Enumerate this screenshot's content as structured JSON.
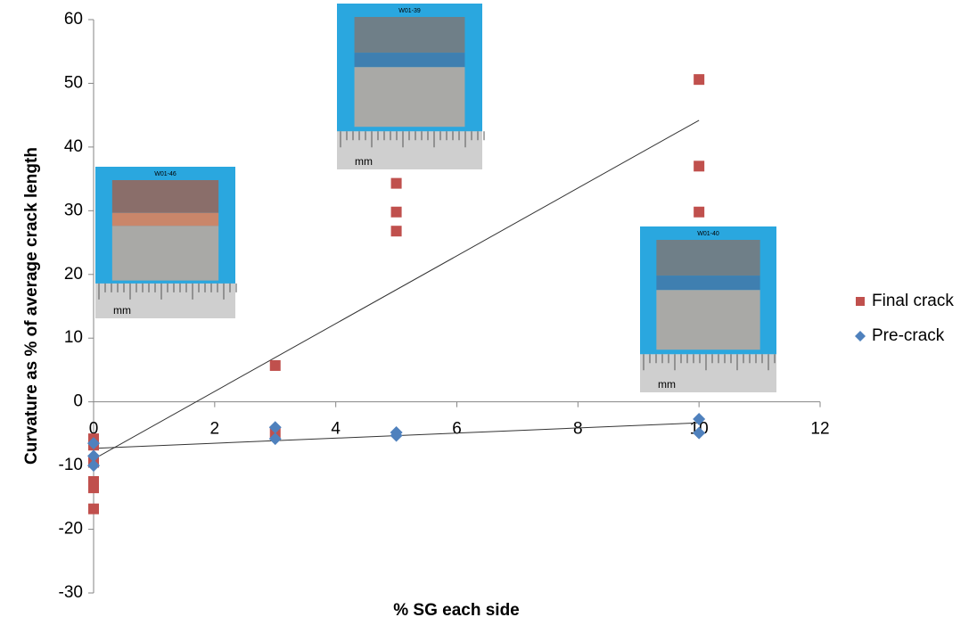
{
  "chart_data": {
    "type": "scatter",
    "x_label": "% SG each side",
    "y_label": "Curvature as % of average crack length",
    "xlim": [
      0,
      12
    ],
    "xticks": [
      0,
      2,
      4,
      6,
      8,
      10,
      12
    ],
    "ylim": [
      -30,
      60
    ],
    "yticks": [
      -30,
      -20,
      -10,
      0,
      10,
      20,
      30,
      40,
      50,
      60
    ],
    "grid": false,
    "legend": "right",
    "series": [
      {
        "name": "Final crack",
        "color": "#c0504d",
        "marker": "square",
        "x": [
          0,
          0,
          0,
          0,
          0,
          0,
          3,
          3,
          5,
          5,
          5,
          10,
          10,
          10
        ],
        "values": [
          -5.8,
          -6.8,
          -9.5,
          -12.5,
          -13.5,
          -16.8,
          5.7,
          -4.8,
          34.3,
          29.8,
          26.8,
          50.6,
          37,
          29.8
        ],
        "trendline": {
          "x": [
            0,
            10
          ],
          "values": [
            -9,
            44.2
          ]
        }
      },
      {
        "name": "Pre-crack",
        "color": "#4f81bd",
        "marker": "diamond",
        "x": [
          0,
          0,
          0,
          3,
          3,
          5,
          5,
          10,
          10
        ],
        "values": [
          -6.5,
          -8.5,
          -10,
          -4,
          -5.8,
          -4.8,
          -5.3,
          -2.7,
          -4.9
        ],
        "trendline": {
          "x": [
            0,
            10
          ],
          "values": [
            -7.3,
            -3.3
          ]
        }
      }
    ],
    "insets": [
      {
        "label": "W01-46",
        "scale_label": "mm"
      },
      {
        "label": "W01-39",
        "scale_label": "mm"
      },
      {
        "label": "W01-40",
        "scale_label": "mm"
      }
    ]
  }
}
